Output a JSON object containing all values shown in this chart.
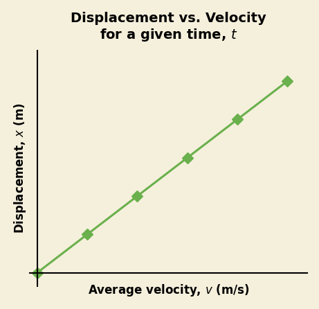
{
  "title_line1": "Displacement vs. Velocity",
  "title_line2": "for a given time, ",
  "title_italic": "t",
  "xlabel_text": "Average velocity, ",
  "xlabel_italic": "v",
  "xlabel_units": " (m/s)",
  "ylabel_text": "Displacement, ",
  "ylabel_italic": "x",
  "ylabel_units": " (m)",
  "x_data": [
    0,
    1,
    2,
    3,
    4,
    5
  ],
  "y_data": [
    0,
    1,
    2,
    3,
    4,
    5
  ],
  "line_color": "#6ab04c",
  "marker_color": "#6ab04c",
  "marker_style": "D",
  "marker_size": 8,
  "line_width": 2.2,
  "background_color": "#f5f0dc",
  "title_fontsize": 14,
  "label_fontsize": 12
}
